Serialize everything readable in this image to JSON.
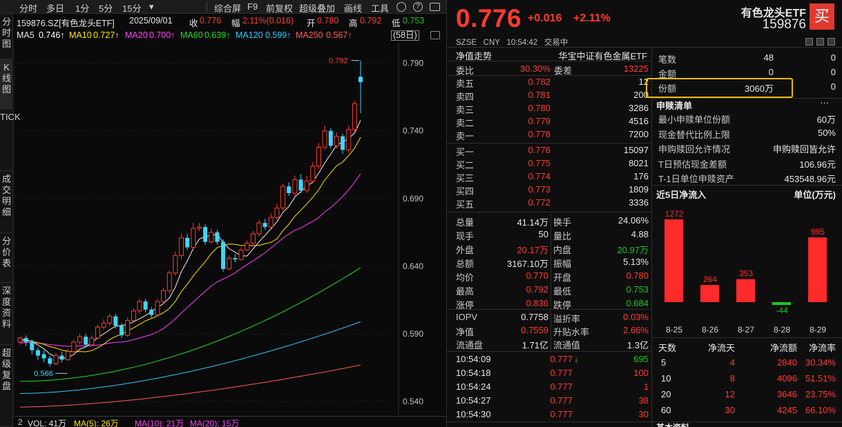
{
  "toolbar": {
    "tabs": [
      "分时",
      "多日",
      "1分",
      "5分",
      "15分"
    ],
    "more": "▾",
    "items": [
      "综合屏",
      "F9",
      "前复权",
      "超级叠加",
      "画线",
      "工具"
    ]
  },
  "side_tabs": [
    "分时图",
    "K线图",
    "TICK",
    "成交明细",
    "分价表",
    "深度资料",
    "超级复盘"
  ],
  "chart_info": {
    "title": "159876.SZ[有色龙头ETF]",
    "date": "2025/09/01",
    "close_label": "收",
    "close": "0.776",
    "change_label": "幅",
    "change": "2.11%(0.016)",
    "open_label": "开",
    "open": "0.780",
    "high_label": "高",
    "high": "0.792",
    "low_label": "低",
    "low": "0.753",
    "period": "(58日)"
  },
  "ma": [
    {
      "label": "MA5",
      "value": "0.746↑",
      "color": "#ffffff"
    },
    {
      "label": "MA10",
      "value": "0.727↑",
      "color": "#ffe800"
    },
    {
      "label": "MA20",
      "value": "0.700↑",
      "color": "#ff40ff"
    },
    {
      "label": "MA60",
      "value": "0.639↑",
      "color": "#22dd22"
    },
    {
      "label": "MA120",
      "value": "0.599↑",
      "color": "#30c8ff"
    },
    {
      "label": "MA250",
      "value": "0.567↑",
      "color": "#ff5a5a"
    }
  ],
  "volume_bar": {
    "label": "VOL: 41万",
    "ma5": "MA(5): 26万",
    "ma10": "MA(10): 21万",
    "ma20": "MA(20): 15万"
  },
  "chart_data": {
    "type": "candlestick",
    "price_axis": {
      "ticks": [
        "0.790",
        "0.740",
        "0.690",
        "0.640",
        "0.590",
        "0.540"
      ],
      "ylim": [
        0.534,
        0.8
      ]
    },
    "markers": {
      "high": "0.792",
      "low": "0.566"
    },
    "candles": [
      [
        0.584,
        0.587,
        0.582,
        0.588
      ],
      [
        0.587,
        0.584,
        0.581,
        0.589
      ],
      [
        0.584,
        0.578,
        0.575,
        0.586
      ],
      [
        0.578,
        0.574,
        0.571,
        0.58
      ],
      [
        0.575,
        0.572,
        0.569,
        0.578
      ],
      [
        0.572,
        0.568,
        0.566,
        0.574
      ],
      [
        0.568,
        0.574,
        0.567,
        0.576
      ],
      [
        0.574,
        0.571,
        0.569,
        0.577
      ],
      [
        0.571,
        0.577,
        0.57,
        0.579
      ],
      [
        0.577,
        0.584,
        0.576,
        0.586
      ],
      [
        0.584,
        0.588,
        0.582,
        0.59
      ],
      [
        0.588,
        0.582,
        0.58,
        0.59
      ],
      [
        0.582,
        0.587,
        0.581,
        0.589
      ],
      [
        0.587,
        0.595,
        0.586,
        0.597
      ],
      [
        0.595,
        0.598,
        0.593,
        0.601
      ],
      [
        0.598,
        0.603,
        0.596,
        0.605
      ],
      [
        0.603,
        0.596,
        0.594,
        0.605
      ],
      [
        0.596,
        0.589,
        0.587,
        0.598
      ],
      [
        0.589,
        0.6,
        0.588,
        0.602
      ],
      [
        0.6,
        0.607,
        0.598,
        0.609
      ],
      [
        0.607,
        0.614,
        0.605,
        0.616
      ],
      [
        0.614,
        0.608,
        0.606,
        0.616
      ],
      [
        0.608,
        0.604,
        0.602,
        0.61
      ],
      [
        0.604,
        0.614,
        0.603,
        0.616
      ],
      [
        0.614,
        0.622,
        0.612,
        0.624
      ],
      [
        0.622,
        0.635,
        0.62,
        0.637
      ],
      [
        0.635,
        0.648,
        0.633,
        0.651
      ],
      [
        0.648,
        0.661,
        0.645,
        0.664
      ],
      [
        0.661,
        0.654,
        0.652,
        0.664
      ],
      [
        0.654,
        0.668,
        0.652,
        0.672
      ],
      [
        0.668,
        0.669,
        0.666,
        0.672
      ],
      [
        0.669,
        0.658,
        0.656,
        0.671
      ],
      [
        0.658,
        0.665,
        0.657,
        0.668
      ],
      [
        0.665,
        0.658,
        0.656,
        0.667
      ],
      [
        0.658,
        0.638,
        0.636,
        0.66
      ],
      [
        0.638,
        0.646,
        0.637,
        0.648
      ],
      [
        0.646,
        0.645,
        0.643,
        0.649
      ],
      [
        0.645,
        0.652,
        0.644,
        0.654
      ],
      [
        0.652,
        0.657,
        0.651,
        0.659
      ],
      [
        0.657,
        0.664,
        0.655,
        0.666
      ],
      [
        0.664,
        0.672,
        0.662,
        0.674
      ],
      [
        0.672,
        0.669,
        0.667,
        0.675
      ],
      [
        0.669,
        0.676,
        0.668,
        0.679
      ],
      [
        0.676,
        0.683,
        0.674,
        0.686
      ],
      [
        0.683,
        0.699,
        0.681,
        0.701
      ],
      [
        0.699,
        0.694,
        0.692,
        0.702
      ],
      [
        0.694,
        0.704,
        0.692,
        0.707
      ],
      [
        0.704,
        0.696,
        0.694,
        0.708
      ],
      [
        0.696,
        0.703,
        0.694,
        0.707
      ],
      [
        0.703,
        0.714,
        0.701,
        0.717
      ],
      [
        0.714,
        0.728,
        0.712,
        0.731
      ],
      [
        0.728,
        0.74,
        0.726,
        0.744
      ],
      [
        0.74,
        0.729,
        0.727,
        0.742
      ],
      [
        0.729,
        0.736,
        0.727,
        0.739
      ],
      [
        0.736,
        0.726,
        0.723,
        0.738
      ],
      [
        0.726,
        0.741,
        0.724,
        0.744
      ],
      [
        0.741,
        0.76,
        0.739,
        0.762
      ],
      [
        0.78,
        0.776,
        0.753,
        0.792
      ]
    ]
  },
  "quote": {
    "name": "有色龙头ETF",
    "code": "159876",
    "price": "0.776",
    "change": "+0.016",
    "pct": "+2.11%",
    "buy_label": "买",
    "meta": [
      "SZSE",
      "CNY",
      "10:54:42",
      "交易中"
    ]
  },
  "nav": {
    "label": "净值走势",
    "fund": "华宝中证有色金属ETF"
  },
  "ratio": {
    "label1": "委比",
    "value1": "30.30%",
    "label2": "委差",
    "value2": "13225"
  },
  "asks": [
    {
      "label": "卖五",
      "price": "0.782",
      "vol": "12"
    },
    {
      "label": "卖四",
      "price": "0.781",
      "vol": "200"
    },
    {
      "label": "卖三",
      "price": "0.780",
      "vol": "3286"
    },
    {
      "label": "卖二",
      "price": "0.779",
      "vol": "4516"
    },
    {
      "label": "卖一",
      "price": "0.778",
      "vol": "7200"
    }
  ],
  "bids": [
    {
      "label": "买一",
      "price": "0.776",
      "vol": "15097"
    },
    {
      "label": "买二",
      "price": "0.775",
      "vol": "8021"
    },
    {
      "label": "买三",
      "price": "0.774",
      "vol": "176"
    },
    {
      "label": "买四",
      "price": "0.773",
      "vol": "1809"
    },
    {
      "label": "买五",
      "price": "0.772",
      "vol": "3336"
    }
  ],
  "stats": [
    {
      "l1": "总量",
      "v1": "41.14万",
      "c1": "w",
      "l2": "换手",
      "v2": "24.06%",
      "c2": "w"
    },
    {
      "l1": "现手",
      "v1": "50",
      "c1": "w",
      "l2": "量比",
      "v2": "4.88",
      "c2": "w"
    },
    {
      "l1": "外盘",
      "v1": "20.17万",
      "c1": "r",
      "l2": "内盘",
      "v2": "20.97万",
      "c2": "g"
    },
    {
      "l1": "总额",
      "v1": "3167.10万",
      "c1": "w",
      "l2": "振幅",
      "v2": "5.13%",
      "c2": "w"
    },
    {
      "l1": "均价",
      "v1": "0.770",
      "c1": "r",
      "l2": "开盘",
      "v2": "0.780",
      "c2": "r"
    },
    {
      "l1": "最高",
      "v1": "0.792",
      "c1": "r",
      "l2": "最低",
      "v2": "0.753",
      "c2": "g"
    },
    {
      "l1": "涨停",
      "v1": "0.836",
      "c1": "r",
      "l2": "跌停",
      "v2": "0.684",
      "c2": "g"
    }
  ],
  "iopv": [
    {
      "l1": "IOPV",
      "v1": "0.7758",
      "c1": "w",
      "l2": "溢折率",
      "v2": "0.03%",
      "c2": "r"
    },
    {
      "l1": "净值",
      "v1": "0.7559",
      "c1": "r",
      "l2": "升贴水率",
      "v2": "2.66%",
      "c2": "r"
    },
    {
      "l1": "流通盘",
      "v1": "1.71亿",
      "c1": "w",
      "l2": "流通值",
      "v2": "1.3亿",
      "c2": "w"
    }
  ],
  "ticks": [
    {
      "time": "10:54:09",
      "price": "0.777",
      "arrow": "↓",
      "vol": "695",
      "vc": "g"
    },
    {
      "time": "10:54:18",
      "price": "0.777",
      "arrow": "",
      "vol": "100",
      "vc": "r"
    },
    {
      "time": "10:54:24",
      "price": "0.777",
      "arrow": "",
      "vol": "1",
      "vc": "r"
    },
    {
      "time": "10:54:27",
      "price": "0.777",
      "arrow": "",
      "vol": "38",
      "vc": "r"
    },
    {
      "time": "10:54:30",
      "price": "0.777",
      "arrow": "",
      "vol": "30",
      "vc": "r"
    }
  ],
  "counts": [
    {
      "label": "笔数",
      "v1": "48",
      "v2": "0"
    },
    {
      "label": "金额",
      "v1": "0",
      "v2": "0"
    },
    {
      "label": "份额",
      "v1": "3060万",
      "v2": "0"
    }
  ],
  "redeem": {
    "title": "申赎清单",
    "more": "···",
    "rows": [
      {
        "label": "最小申赎单位份额",
        "value": "60万"
      },
      {
        "label": "现金替代比例上限",
        "value": "50%"
      },
      {
        "label": "申购赎回允许情况",
        "value": "申购赎回皆允许"
      },
      {
        "label": "T日预估现金差额",
        "value": "106.96元"
      },
      {
        "label": "T-1日单位申赎资产",
        "value": "453548.96元"
      }
    ]
  },
  "flow": {
    "title": "近5日净流入",
    "unit": "单位(万元)",
    "chart_data": {
      "type": "bar",
      "categories": [
        "8-25",
        "8-26",
        "8-27",
        "8-28",
        "8-29"
      ],
      "values": [
        1272,
        264,
        353,
        -44,
        995
      ],
      "ylim": [
        -44,
        1272
      ]
    }
  },
  "flow_table": {
    "headers": [
      "天数",
      "净流天",
      "净流额",
      "净流率"
    ],
    "rows": [
      [
        "5",
        "4",
        "2840",
        "30.34%"
      ],
      [
        "10",
        "8",
        "4096",
        "51.51%"
      ],
      [
        "20",
        "12",
        "3646",
        "23.75%"
      ],
      [
        "60",
        "30",
        "4245",
        "66.10%"
      ]
    ]
  },
  "footer": {
    "label": "基本资料"
  },
  "colors": {
    "up": "#ff3b30",
    "down": "#1ec51e",
    "highlight": "#f5b800"
  }
}
